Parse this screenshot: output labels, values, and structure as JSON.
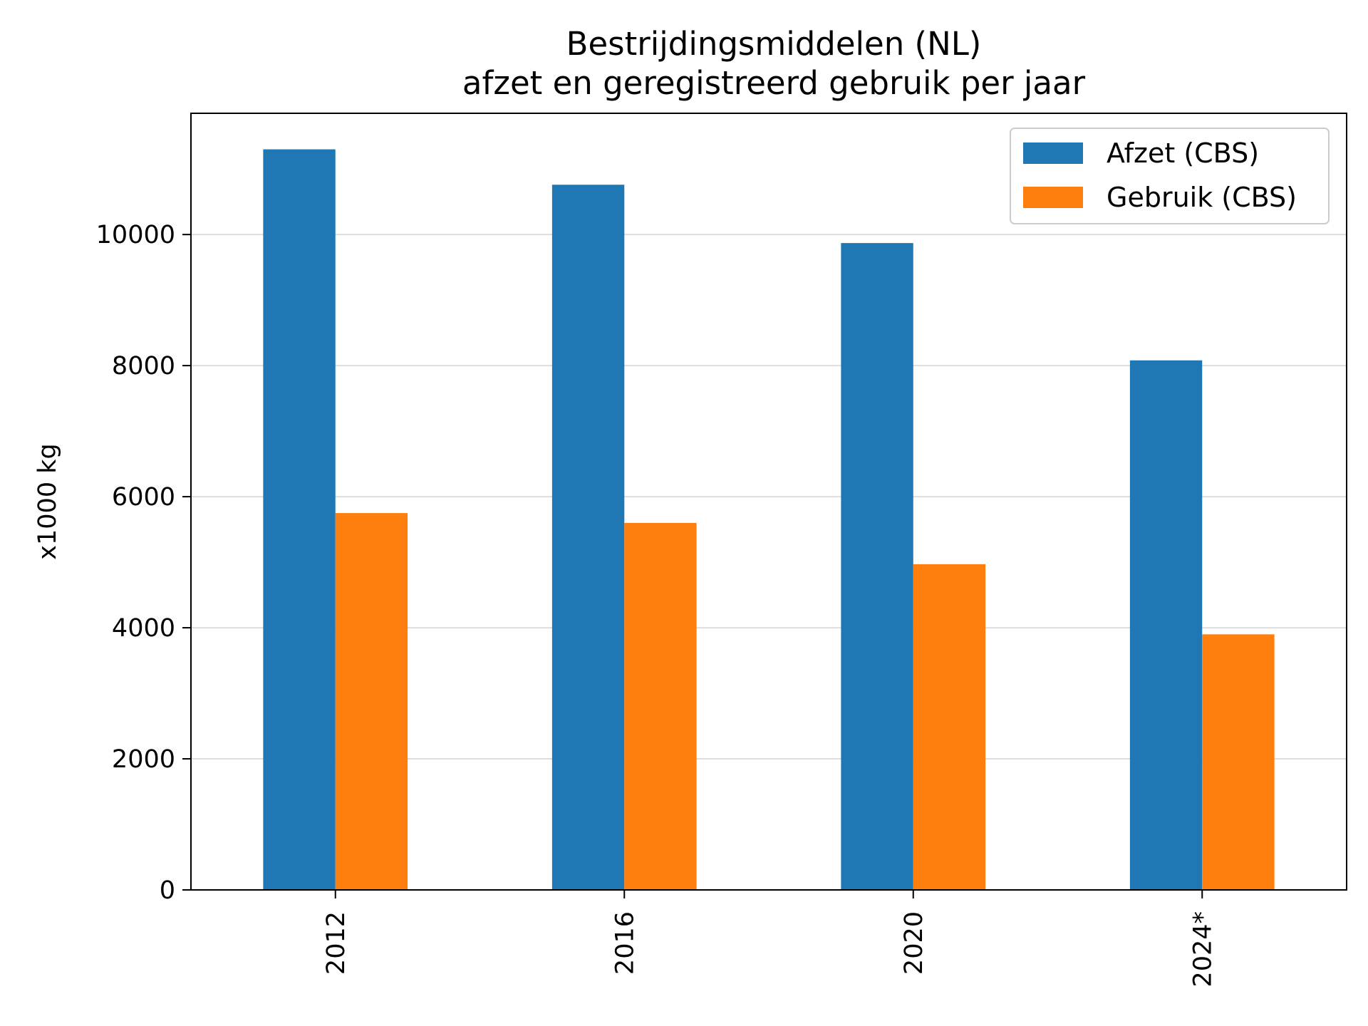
{
  "chart_data": {
    "type": "bar",
    "title": "Bestrijdingsmiddelen (NL)",
    "subtitle": "afzet en geregistreerd gebruik per jaar",
    "xlabel": "",
    "ylabel": "x1000 kg",
    "categories": [
      "2012",
      "2016",
      "2020",
      "2024*"
    ],
    "series": [
      {
        "name": "Afzet (CBS)",
        "color": "#1f77b4",
        "values": [
          11300,
          10760,
          9870,
          8080
        ]
      },
      {
        "name": "Gebruik (CBS)",
        "color": "#ff7f0e",
        "values": [
          5750,
          5600,
          4970,
          3900
        ]
      }
    ],
    "ylim": [
      0,
      11850
    ],
    "yticks": [
      0,
      2000,
      4000,
      6000,
      8000,
      10000
    ],
    "ytick_labels": [
      "0",
      "2000",
      "4000",
      "6000",
      "8000",
      "10000"
    ],
    "grid": "y",
    "legend_position": "top-right",
    "xtick_rotation": "vertical"
  }
}
